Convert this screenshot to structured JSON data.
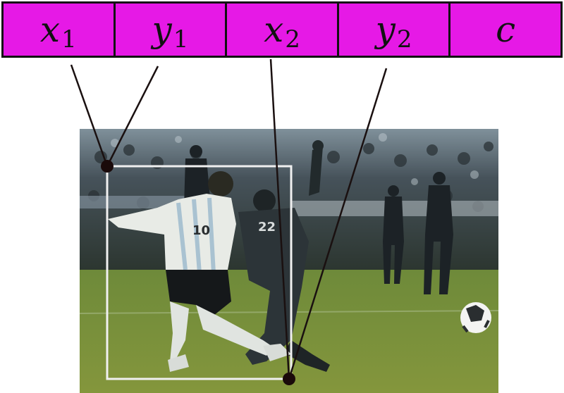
{
  "diagram": {
    "header_fields": [
      {
        "main": "x",
        "sub": "1"
      },
      {
        "main": "y",
        "sub": "1"
      },
      {
        "main": "x",
        "sub": "2"
      },
      {
        "main": "y",
        "sub": "2"
      },
      {
        "main": "c",
        "sub": ""
      }
    ],
    "photo": {
      "jersey_number_player_1": "10",
      "jersey_number_player_2": "22"
    },
    "colors": {
      "header_fill": "#e619e6",
      "border": "#111111",
      "box": "#f0f0f0",
      "connector": "#1a1010",
      "point": "#1a0a0a"
    }
  }
}
